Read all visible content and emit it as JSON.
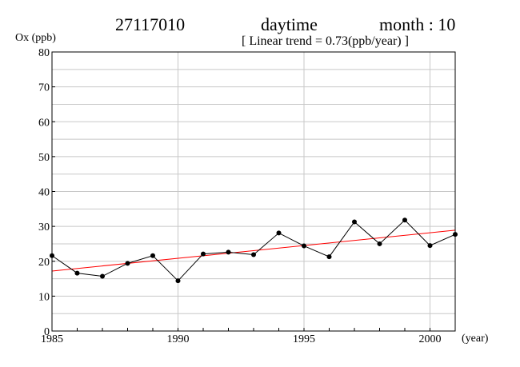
{
  "header": {
    "station": "27117010",
    "period": "daytime",
    "month": "month : 10",
    "trend": "[ Linear trend = 0.73(ppb/year) ]"
  },
  "chart_data": {
    "type": "line",
    "ylabel": "Ox (ppb)",
    "xlabel": "(year)",
    "xlim": [
      1985,
      2001
    ],
    "ylim": [
      0,
      80
    ],
    "xticks": [
      1985,
      1990,
      1995,
      2000
    ],
    "yticks": [
      0,
      10,
      20,
      30,
      40,
      50,
      60,
      70,
      80
    ],
    "grid": true,
    "series": [
      {
        "x": [
          1985,
          1986,
          1987,
          1988,
          1989,
          1990,
          1991,
          1992,
          1993,
          1994,
          1995,
          1996,
          1997,
          1998,
          1999,
          2000,
          2001
        ],
        "values": [
          21.6,
          16.6,
          15.7,
          19.4,
          21.6,
          14.4,
          22.1,
          22.6,
          21.9,
          28.1,
          24.4,
          21.3,
          31.3,
          25.0,
          31.8,
          24.5,
          27.7
        ],
        "color": "#000000"
      }
    ],
    "trend_line": {
      "x": [
        1985,
        2001
      ],
      "values": [
        17.2,
        28.9
      ],
      "color": "#ff0000"
    }
  }
}
